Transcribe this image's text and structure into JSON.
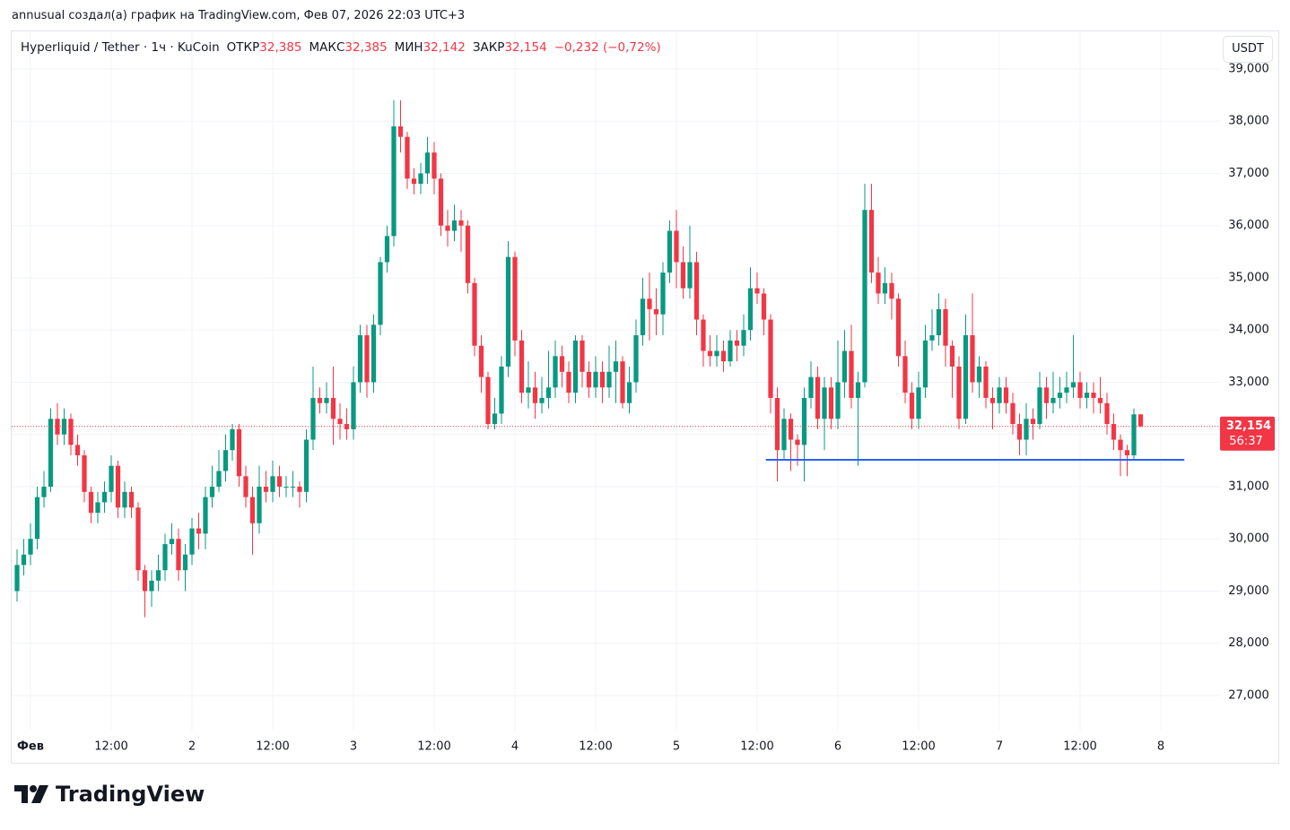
{
  "header": {
    "credit": "annusual создал(а) график на TradingView.com, Фев 07, 2026 22:03 UTC+3"
  },
  "chart_data": {
    "type": "candlestick",
    "title": "Hyperliquid / Tether · 1ч · KuCoin",
    "legend_items": [
      {
        "label": "ОТКР",
        "value": "32,385"
      },
      {
        "label": "МАКС",
        "value": "32,385"
      },
      {
        "label": "МИН",
        "value": "32,142"
      },
      {
        "label": "ЗАКР",
        "value": "32,154"
      }
    ],
    "change": "−0,232 (−0,72%)",
    "currency": "USDT",
    "open": [
      29100,
      29000,
      29500,
      29700,
      30000,
      30800,
      31000,
      32300,
      32000,
      32300,
      31800,
      31600,
      30900,
      30500,
      30700,
      30900,
      31400,
      30600,
      30900,
      30600,
      29400,
      29000,
      29200,
      29400,
      29900,
      30000,
      29400,
      29700,
      30200,
      30100,
      30800,
      31000,
      31300,
      31700,
      32100,
      31200,
      30800,
      30300,
      31000,
      30900,
      31200,
      31000,
      31000,
      31000,
      30900,
      31900,
      32700,
      32600,
      32700,
      32300,
      32200,
      32100,
      33000,
      33900,
      33000,
      34100,
      35300,
      35800,
      37900,
      37700,
      36900,
      36800,
      37000,
      37400,
      36900,
      36000,
      35900,
      36100,
      36000,
      34900,
      33700,
      33100,
      32200,
      32400,
      33300,
      35400,
      33800,
      32800,
      32900,
      32600,
      32700,
      32900,
      33500,
      33200,
      32800,
      33800,
      33200,
      32900,
      33200,
      32900,
      33200,
      33400,
      32600,
      33000,
      33900,
      34600,
      34400,
      34300,
      35100,
      35900,
      35300,
      34800,
      35300,
      34200,
      33600,
      33500,
      33600,
      33400,
      33800,
      33700,
      34000,
      34800,
      34700,
      34200,
      32700,
      31700,
      32300,
      31900,
      31800,
      32700,
      33100,
      32300,
      32900,
      32300,
      33000,
      33600,
      32700,
      33000,
      36300,
      35100,
      34700,
      34900,
      34600,
      33500,
      32800,
      32300,
      32900,
      33800,
      33900,
      34400,
      33700,
      33300,
      32300,
      33900,
      33000,
      33300,
      32700,
      32600,
      32900,
      32600,
      32200,
      31900,
      32300,
      32200,
      32900,
      32600,
      32700,
      32800,
      32900,
      33000,
      32700,
      32800,
      32700,
      32600,
      32200,
      31900,
      31700,
      31600,
      32385
    ],
    "high": [
      29300,
      29800,
      30000,
      30300,
      31000,
      31300,
      32500,
      32600,
      32500,
      32400,
      32000,
      31700,
      31000,
      30900,
      31100,
      31600,
      31500,
      31100,
      31000,
      30700,
      29500,
      29400,
      29700,
      30100,
      30300,
      30200,
      29900,
      30400,
      30500,
      31000,
      31400,
      31700,
      32000,
      32200,
      32200,
      31400,
      31000,
      31400,
      31300,
      31500,
      31400,
      31200,
      31300,
      31100,
      32100,
      33300,
      32900,
      33000,
      33300,
      32600,
      32500,
      33300,
      34100,
      34100,
      34300,
      35400,
      36000,
      38400,
      38400,
      37800,
      37100,
      37200,
      37700,
      37600,
      37000,
      36300,
      36400,
      36300,
      36100,
      35000,
      33900,
      33200,
      32700,
      33500,
      35700,
      35500,
      34000,
      33400,
      33200,
      33100,
      33600,
      33800,
      33700,
      33400,
      33900,
      33900,
      33400,
      33500,
      33400,
      33700,
      33800,
      33500,
      33300,
      34200,
      35000,
      35100,
      34800,
      35300,
      36100,
      36300,
      35600,
      36000,
      35500,
      34300,
      33900,
      33900,
      33800,
      34000,
      34000,
      34300,
      35200,
      35100,
      34800,
      34300,
      32900,
      32500,
      32400,
      32000,
      32900,
      33400,
      33300,
      33100,
      33100,
      33800,
      34000,
      34100,
      33200,
      36800,
      36800,
      35400,
      35200,
      35100,
      34700,
      33800,
      33000,
      33200,
      34100,
      34400,
      34700,
      34600,
      33800,
      33500,
      34300,
      34700,
      33500,
      33400,
      32900,
      33100,
      33100,
      32800,
      32400,
      32600,
      32500,
      33200,
      33100,
      33200,
      33100,
      33200,
      33900,
      33200,
      33000,
      33000,
      33100,
      32800,
      32400,
      32000,
      31800,
      32500,
      32385
    ],
    "low": [
      28700,
      28800,
      29300,
      29500,
      29800,
      30600,
      30900,
      31800,
      31800,
      31600,
      31400,
      30700,
      30300,
      30300,
      30500,
      30700,
      30400,
      30400,
      30400,
      29200,
      28500,
      28700,
      29000,
      29200,
      29700,
      29200,
      29000,
      29500,
      29800,
      29800,
      30600,
      30900,
      31100,
      31500,
      31000,
      30600,
      29700,
      30100,
      30700,
      30700,
      30800,
      30800,
      30800,
      30600,
      30700,
      31700,
      32400,
      32400,
      31800,
      31900,
      31900,
      31900,
      32800,
      32700,
      32800,
      33900,
      35100,
      35600,
      37400,
      36700,
      36600,
      36600,
      36800,
      36600,
      35800,
      35600,
      35700,
      35500,
      34700,
      33500,
      32800,
      32100,
      32100,
      32200,
      33100,
      33500,
      32600,
      32500,
      32300,
      32400,
      32500,
      32700,
      32900,
      32600,
      32600,
      32900,
      32700,
      32700,
      32600,
      32700,
      32600,
      32500,
      32400,
      32800,
      33700,
      33800,
      33900,
      33900,
      34900,
      34800,
      34600,
      34600,
      33900,
      33300,
      33300,
      33300,
      33200,
      33300,
      33400,
      33500,
      33800,
      34500,
      33900,
      32400,
      31100,
      31500,
      31300,
      31400,
      31100,
      32500,
      32100,
      31700,
      32100,
      32100,
      32700,
      32500,
      31400,
      32900,
      34900,
      34500,
      34500,
      34200,
      33300,
      32600,
      32100,
      32100,
      32700,
      33600,
      33700,
      33300,
      32700,
      32100,
      32200,
      32800,
      32700,
      32500,
      32100,
      32400,
      32400,
      32000,
      31600,
      31600,
      31900,
      32100,
      32300,
      32400,
      32500,
      32600,
      32700,
      32500,
      32500,
      32400,
      32400,
      32000,
      31700,
      31200,
      31200,
      31500,
      32142
    ],
    "close": [
      29000,
      29500,
      29700,
      30000,
      30800,
      31000,
      32300,
      32000,
      32300,
      31800,
      31600,
      30900,
      30500,
      30700,
      30900,
      31400,
      30600,
      30900,
      30600,
      29400,
      29000,
      29200,
      29400,
      29900,
      30000,
      29400,
      29700,
      30200,
      30100,
      30800,
      31000,
      31300,
      31700,
      32100,
      31200,
      30800,
      30300,
      31000,
      30900,
      31200,
      31000,
      31000,
      31000,
      30900,
      31900,
      32700,
      32600,
      32700,
      32300,
      32200,
      32100,
      33000,
      33900,
      33000,
      34100,
      35300,
      35800,
      37900,
      37700,
      36900,
      36800,
      37000,
      37400,
      36900,
      36000,
      35900,
      36100,
      36000,
      34900,
      33700,
      33100,
      32200,
      32400,
      33300,
      35400,
      33800,
      32800,
      32900,
      32600,
      32700,
      32900,
      33500,
      33200,
      32800,
      33800,
      33200,
      32900,
      33200,
      32900,
      33200,
      33400,
      32600,
      33000,
      33900,
      34600,
      34400,
      34300,
      35100,
      35900,
      35300,
      34800,
      35300,
      34200,
      33600,
      33500,
      33600,
      33400,
      33800,
      33700,
      34000,
      34800,
      34700,
      34200,
      32700,
      31700,
      32300,
      31900,
      31800,
      32700,
      33100,
      32300,
      32900,
      32300,
      33000,
      33600,
      32700,
      33000,
      36300,
      35100,
      34700,
      34900,
      34600,
      33500,
      32800,
      32300,
      32900,
      33800,
      33900,
      34400,
      33700,
      33300,
      32300,
      33900,
      33000,
      33300,
      32700,
      32600,
      32900,
      32600,
      32200,
      31900,
      32300,
      32200,
      32900,
      32600,
      32700,
      32800,
      32900,
      33000,
      32700,
      32800,
      32700,
      32600,
      32200,
      31900,
      31700,
      31600,
      32385,
      32154
    ],
    "up_color": "#089981",
    "down_color": "#f23645",
    "ylim": [
      26330,
      39720
    ],
    "yticks": [
      {
        "value": 27000,
        "label": "27,000"
      },
      {
        "value": 28000,
        "label": "28,000"
      },
      {
        "value": 29000,
        "label": "29,000"
      },
      {
        "value": 30000,
        "label": "30,000"
      },
      {
        "value": 31000,
        "label": "31,000"
      },
      {
        "value": 32000,
        "label": "32,000"
      },
      {
        "value": 33000,
        "label": "33,000"
      },
      {
        "value": 34000,
        "label": "34,000"
      },
      {
        "value": 35000,
        "label": "35,000"
      },
      {
        "value": 36000,
        "label": "36,000"
      },
      {
        "value": 37000,
        "label": "37,000"
      },
      {
        "value": 38000,
        "label": "38,000"
      },
      {
        "value": 39000,
        "label": "39,000"
      }
    ],
    "xlim": [
      0.2,
      179.8
    ],
    "xticks": [
      {
        "value": 3,
        "label": "Фев"
      },
      {
        "value": 15,
        "label": "12:00"
      },
      {
        "value": 27,
        "label": "2"
      },
      {
        "value": 39,
        "label": "12:00"
      },
      {
        "value": 51,
        "label": "3"
      },
      {
        "value": 63,
        "label": "12:00"
      },
      {
        "value": 75,
        "label": "4"
      },
      {
        "value": 87,
        "label": "12:00"
      },
      {
        "value": 99,
        "label": "5"
      },
      {
        "value": 111,
        "label": "12:00"
      },
      {
        "value": 123,
        "label": "6"
      },
      {
        "value": 135,
        "label": "12:00"
      },
      {
        "value": 147,
        "label": "7"
      },
      {
        "value": 159,
        "label": "12:00"
      },
      {
        "value": 171,
        "label": "8"
      }
    ],
    "grid": true,
    "last_price": {
      "value": 32154,
      "label": "32,154"
    },
    "countdown": "56:37",
    "hline": {
      "value": 31515,
      "x": [
        112.3,
        174.5
      ],
      "color": "#2962ff"
    }
  },
  "footer": {
    "brand": "TradingView"
  }
}
